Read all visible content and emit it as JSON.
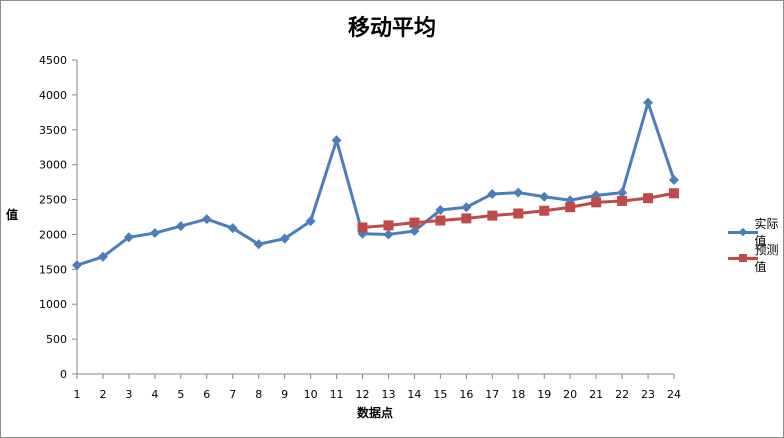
{
  "chart_data": {
    "type": "line",
    "title": "移动平均",
    "xlabel": "数据点",
    "ylabel": "值",
    "x": [
      1,
      2,
      3,
      4,
      5,
      6,
      7,
      8,
      9,
      10,
      11,
      12,
      13,
      14,
      15,
      16,
      17,
      18,
      19,
      20,
      21,
      22,
      23,
      24
    ],
    "ylim": [
      0,
      4500
    ],
    "yticks": [
      0,
      500,
      1000,
      1500,
      2000,
      2500,
      3000,
      3500,
      4000,
      4500
    ],
    "grid": false,
    "legend_position": "right",
    "series": [
      {
        "name": "实际值",
        "color": "#4a7ebb",
        "marker": "diamond",
        "values": [
          1560,
          1680,
          1960,
          2020,
          2120,
          2220,
          2090,
          1860,
          1940,
          2190,
          3350,
          2010,
          2000,
          2050,
          2350,
          2390,
          2580,
          2600,
          2540,
          2490,
          2560,
          2600,
          3890,
          2780
        ]
      },
      {
        "name": "预测值",
        "color": "#be4b48",
        "marker": "square",
        "values": [
          null,
          null,
          null,
          null,
          null,
          null,
          null,
          null,
          null,
          null,
          null,
          2100,
          2130,
          2170,
          2200,
          2230,
          2270,
          2300,
          2340,
          2390,
          2460,
          2480,
          2520,
          2590
        ]
      }
    ]
  },
  "labels": {
    "title": "移动平均",
    "xlabel": "数据点",
    "ylabel": "值",
    "legend": [
      "实际值",
      "预测值"
    ]
  }
}
